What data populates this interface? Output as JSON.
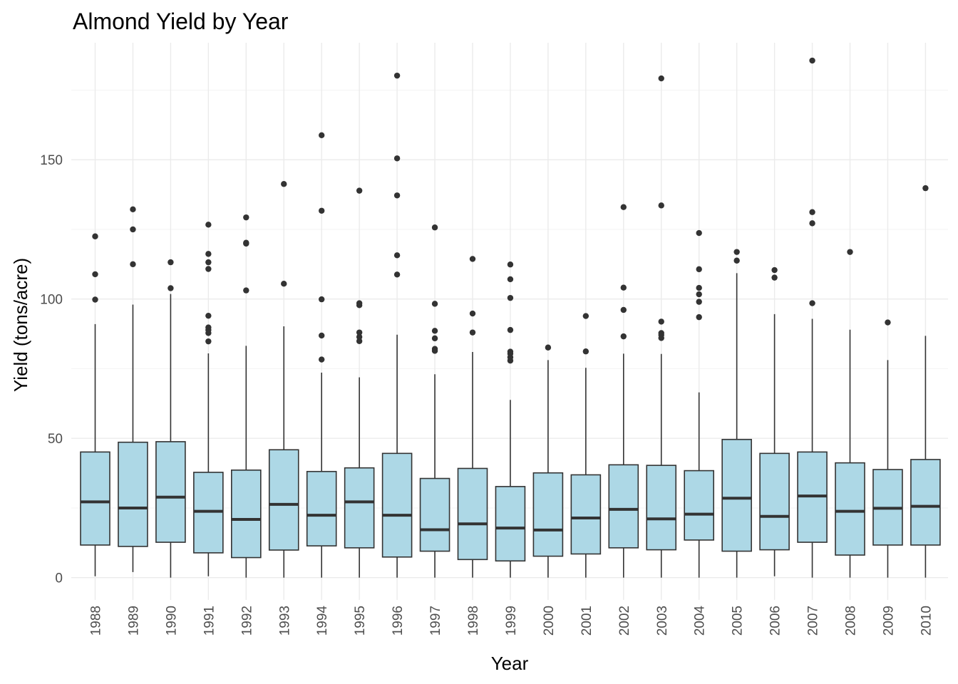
{
  "chart_data": {
    "type": "boxplot",
    "title": "Almond Yield by Year",
    "xlabel": "Year",
    "ylabel": "Yield (tons/acre)",
    "ylim": [
      -8,
      192
    ],
    "yticks": [
      0,
      50,
      100,
      150
    ],
    "grid": true,
    "box_fill": "#add8e6",
    "box_line": "#333333",
    "categories": [
      "1988",
      "1989",
      "1990",
      "1991",
      "1992",
      "1993",
      "1994",
      "1995",
      "1996",
      "1997",
      "1998",
      "1999",
      "2000",
      "2001",
      "2002",
      "2003",
      "2004",
      "2005",
      "2006",
      "2007",
      "2008",
      "2009",
      "2010"
    ],
    "boxes": [
      {
        "min": 0.5,
        "q1": 11.7,
        "median": 27.2,
        "q3": 45.1,
        "max": 91.0,
        "outliers": [
          99.8,
          108.9,
          122.5
        ]
      },
      {
        "min": 2.0,
        "q1": 11.2,
        "median": 25.0,
        "q3": 48.6,
        "max": 98.0,
        "outliers": [
          112.5,
          125.0,
          132.2
        ]
      },
      {
        "min": 0.0,
        "q1": 12.7,
        "median": 28.9,
        "q3": 48.8,
        "max": 101.8,
        "outliers": [
          103.9,
          113.2
        ]
      },
      {
        "min": 0.5,
        "q1": 8.9,
        "median": 23.8,
        "q3": 37.8,
        "max": 80.5,
        "outliers": [
          84.8,
          87.8,
          88.9,
          89.8,
          94.0,
          110.8,
          113.2,
          116.2,
          126.7
        ]
      },
      {
        "min": 0.0,
        "q1": 7.2,
        "median": 20.9,
        "q3": 38.6,
        "max": 83.2,
        "outliers": [
          103.1,
          119.9,
          120.2,
          129.3
        ]
      },
      {
        "min": 0.0,
        "q1": 9.9,
        "median": 26.3,
        "q3": 45.9,
        "max": 90.2,
        "outliers": [
          105.5,
          141.3
        ]
      },
      {
        "min": 0.0,
        "q1": 11.4,
        "median": 22.4,
        "q3": 38.1,
        "max": 73.6,
        "outliers": [
          78.3,
          86.9,
          99.9,
          131.7,
          158.8
        ]
      },
      {
        "min": 0.0,
        "q1": 10.7,
        "median": 27.2,
        "q3": 39.4,
        "max": 71.9,
        "outliers": [
          84.9,
          86.4,
          88.0,
          97.8,
          98.5,
          138.9
        ]
      },
      {
        "min": 0.0,
        "q1": 7.4,
        "median": 22.4,
        "q3": 44.6,
        "max": 87.2,
        "outliers": [
          108.8,
          115.7,
          137.2,
          150.5,
          180.2
        ]
      },
      {
        "min": 0.0,
        "q1": 9.5,
        "median": 17.2,
        "q3": 35.6,
        "max": 73.0,
        "outliers": [
          81.4,
          82.1,
          85.9,
          88.6,
          98.3,
          125.7
        ]
      },
      {
        "min": 0.0,
        "q1": 6.5,
        "median": 19.3,
        "q3": 39.2,
        "max": 81.0,
        "outliers": [
          88.0,
          94.8,
          114.4
        ]
      },
      {
        "min": 0.0,
        "q1": 6.0,
        "median": 17.8,
        "q3": 32.7,
        "max": 63.8,
        "outliers": [
          77.9,
          79.1,
          80.4,
          81.1,
          88.9,
          100.4,
          107.1,
          112.4
        ]
      },
      {
        "min": 0.0,
        "q1": 7.7,
        "median": 17.1,
        "q3": 37.6,
        "max": 78.1,
        "outliers": [
          82.6
        ]
      },
      {
        "min": 0.0,
        "q1": 8.5,
        "median": 21.4,
        "q3": 36.9,
        "max": 75.3,
        "outliers": [
          81.2,
          93.9
        ]
      },
      {
        "min": 0.0,
        "q1": 10.7,
        "median": 24.5,
        "q3": 40.5,
        "max": 80.4,
        "outliers": [
          86.6,
          96.1,
          104.1,
          133.0
        ]
      },
      {
        "min": 0.0,
        "q1": 10.0,
        "median": 21.1,
        "q3": 40.3,
        "max": 80.3,
        "outliers": [
          86.0,
          87.1,
          87.8,
          91.9,
          133.6,
          179.2
        ]
      },
      {
        "min": 0.0,
        "q1": 13.5,
        "median": 22.8,
        "q3": 38.4,
        "max": 66.5,
        "outliers": [
          93.5,
          99.0,
          101.7,
          104.0,
          110.7,
          123.7
        ]
      },
      {
        "min": 0.0,
        "q1": 9.5,
        "median": 28.5,
        "q3": 49.6,
        "max": 109.3,
        "outliers": [
          113.8,
          116.9
        ]
      },
      {
        "min": 0.5,
        "q1": 10.0,
        "median": 22.0,
        "q3": 44.6,
        "max": 94.6,
        "outliers": [
          107.7,
          110.4
        ]
      },
      {
        "min": 0.0,
        "q1": 12.7,
        "median": 29.3,
        "q3": 45.1,
        "max": 92.9,
        "outliers": [
          98.5,
          127.2,
          131.2,
          185.6
        ]
      },
      {
        "min": 0.0,
        "q1": 8.1,
        "median": 23.8,
        "q3": 41.2,
        "max": 89.0,
        "outliers": [
          116.9
        ]
      },
      {
        "min": 0.0,
        "q1": 11.7,
        "median": 24.9,
        "q3": 38.8,
        "max": 78.1,
        "outliers": [
          91.6
        ]
      },
      {
        "min": 0.0,
        "q1": 11.7,
        "median": 25.6,
        "q3": 42.4,
        "max": 86.8,
        "outliers": [
          139.8
        ]
      }
    ]
  }
}
